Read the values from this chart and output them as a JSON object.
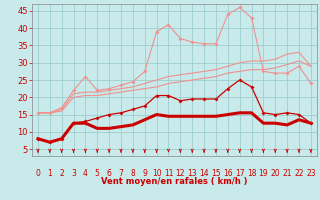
{
  "x": [
    0,
    1,
    2,
    3,
    4,
    5,
    6,
    7,
    8,
    9,
    10,
    11,
    12,
    13,
    14,
    15,
    16,
    17,
    18,
    19,
    20,
    21,
    22,
    23
  ],
  "background_color": "#c8eaea",
  "grid_color": "#9ecece",
  "xlabel": "Vent moyen/en rafales ( km/h )",
  "xlabel_color": "#cc0000",
  "yticks": [
    5,
    10,
    15,
    20,
    25,
    30,
    35,
    40,
    45
  ],
  "ylim": [
    3,
    47
  ],
  "xlim": [
    -0.5,
    23.5
  ],
  "line_pink1_y": [
    15.5,
    15.5,
    16.0,
    20.0,
    20.5,
    20.5,
    21.0,
    21.5,
    22.0,
    22.5,
    23.0,
    24.0,
    24.5,
    25.0,
    25.5,
    26.0,
    27.0,
    27.5,
    28.0,
    28.0,
    28.5,
    29.5,
    30.5,
    29.0
  ],
  "line_pink2_y": [
    15.5,
    15.5,
    16.5,
    21.0,
    21.5,
    21.5,
    22.0,
    22.5,
    23.0,
    24.0,
    25.0,
    26.0,
    26.5,
    27.0,
    27.5,
    28.0,
    29.0,
    30.0,
    30.5,
    30.5,
    31.0,
    32.5,
    33.0,
    29.0
  ],
  "line_pink3_y": [
    15.5,
    15.5,
    17.0,
    22.0,
    26.0,
    22.0,
    22.5,
    23.5,
    24.5,
    27.5,
    39.0,
    41.0,
    37.0,
    36.0,
    35.5,
    35.5,
    44.0,
    46.0,
    43.0,
    27.5,
    27.0,
    27.0,
    29.0,
    24.0
  ],
  "line_red_flat_y": [
    8.0,
    7.0,
    8.0,
    12.5,
    12.5,
    11.0,
    11.0,
    11.5,
    12.0,
    13.5,
    15.0,
    14.5,
    14.5,
    14.5,
    14.5,
    14.5,
    15.0,
    15.5,
    15.5,
    12.5,
    12.5,
    12.0,
    13.5,
    12.5
  ],
  "line_red_marked_y": [
    8.0,
    7.0,
    8.0,
    12.5,
    13.0,
    14.0,
    15.0,
    15.5,
    16.5,
    17.5,
    20.5,
    20.5,
    19.0,
    19.5,
    19.5,
    19.5,
    22.5,
    25.0,
    23.0,
    15.5,
    15.0,
    15.5,
    15.0,
    12.5
  ],
  "pink_color": "#f09090",
  "red_color": "#cc0000",
  "tick_fontsize": 5.5,
  "xlabel_fontsize": 6.0,
  "ytick_fontsize": 6.0
}
